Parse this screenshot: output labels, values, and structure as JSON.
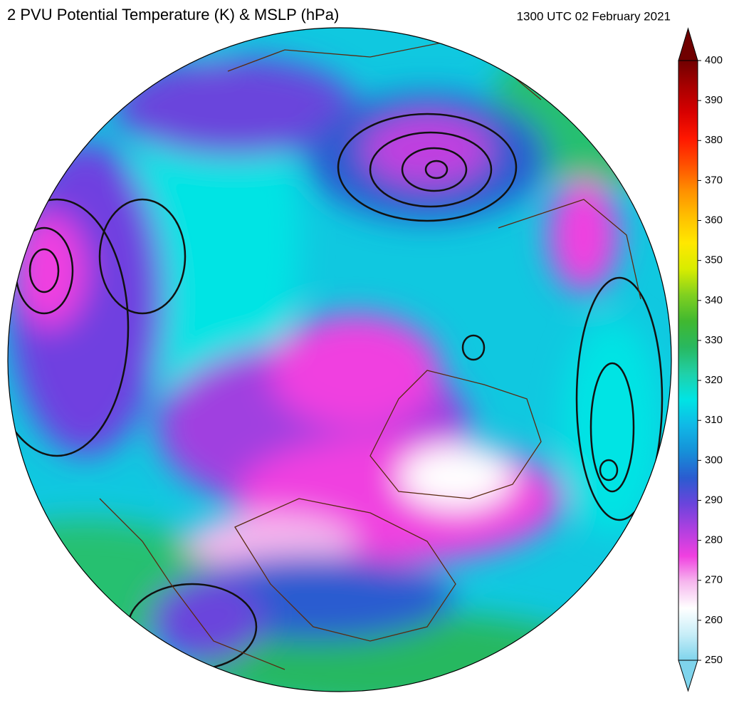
{
  "header": {
    "title": "2 PVU Potential Temperature (K) & MSLP (hPa)",
    "time": "1300 UTC 02 February 2021"
  },
  "colorbar": {
    "lim": [
      250,
      400
    ],
    "ticks": [
      250,
      260,
      270,
      280,
      290,
      300,
      310,
      320,
      330,
      340,
      350,
      360,
      370,
      380,
      390,
      400
    ],
    "colors": [
      "#7fd4ec",
      "#c8eef8",
      "#ffffff",
      "#f6b8ee",
      "#f040e0",
      "#b040e0",
      "#6a44dc",
      "#2a5cd0",
      "#1690d8",
      "#10b8e6",
      "#00e4e4",
      "#20d0a8",
      "#28b860",
      "#40b830",
      "#80d020",
      "#d8ec00",
      "#ffe800",
      "#ffc000",
      "#ff9000",
      "#ff5000",
      "#ff1800",
      "#d80000",
      "#a80000",
      "#700000"
    ],
    "extend": "both"
  }
}
